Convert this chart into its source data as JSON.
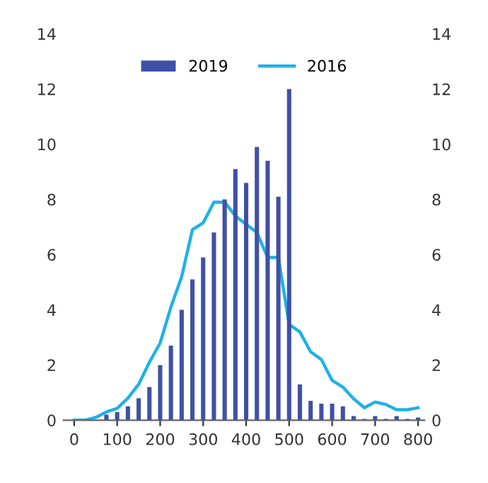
{
  "chart_data": {
    "type": "bar",
    "xlim": [
      -25,
      815
    ],
    "xticks": [
      0,
      100,
      200,
      300,
      400,
      500,
      600,
      700,
      800
    ],
    "ylim": [
      0,
      14
    ],
    "yticks": [
      0,
      2,
      4,
      6,
      8,
      10,
      12,
      14
    ],
    "y2lim": [
      0,
      14
    ],
    "y2ticks": [
      0,
      2,
      4,
      6,
      8,
      10,
      12,
      14
    ],
    "grid": false,
    "legend": "top",
    "series": [
      {
        "name": "2019",
        "color": "#3f51a6",
        "x": [
          75,
          100,
          125,
          150,
          175,
          200,
          225,
          250,
          275,
          300,
          325,
          350,
          375,
          400,
          425,
          450,
          475,
          500,
          525,
          550,
          575,
          600,
          625,
          650,
          675,
          700,
          725,
          750,
          775,
          800
        ],
        "values": [
          0.2,
          0.3,
          0.5,
          0.8,
          1.2,
          2.0,
          2.7,
          4.0,
          5.1,
          5.9,
          6.8,
          8.0,
          9.1,
          8.6,
          9.9,
          9.4,
          8.1,
          12.0,
          1.3,
          0.7,
          0.6,
          0.6,
          0.5,
          0.15,
          0.05,
          0.15,
          0.05,
          0.15,
          0.05,
          0.1
        ]
      },
      {
        "name": "2016",
        "type": "line",
        "color": "#1fb1e6",
        "x": [
          0,
          25,
          50,
          75,
          100,
          125,
          150,
          175,
          200,
          225,
          250,
          275,
          300,
          325,
          350,
          375,
          400,
          425,
          450,
          475,
          500,
          525,
          550,
          575,
          600,
          625,
          650,
          675,
          700,
          725,
          750,
          775,
          800
        ],
        "values": [
          0,
          0,
          0.1,
          0.3,
          0.43,
          0.8,
          1.3,
          2.1,
          2.8,
          4.1,
          5.2,
          6.9,
          7.15,
          7.9,
          7.9,
          7.4,
          7.1,
          6.8,
          5.9,
          5.9,
          3.47,
          3.2,
          2.48,
          2.2,
          1.44,
          1.2,
          0.78,
          0.45,
          0.66,
          0.57,
          0.38,
          0.38,
          0.45
        ]
      }
    ]
  }
}
